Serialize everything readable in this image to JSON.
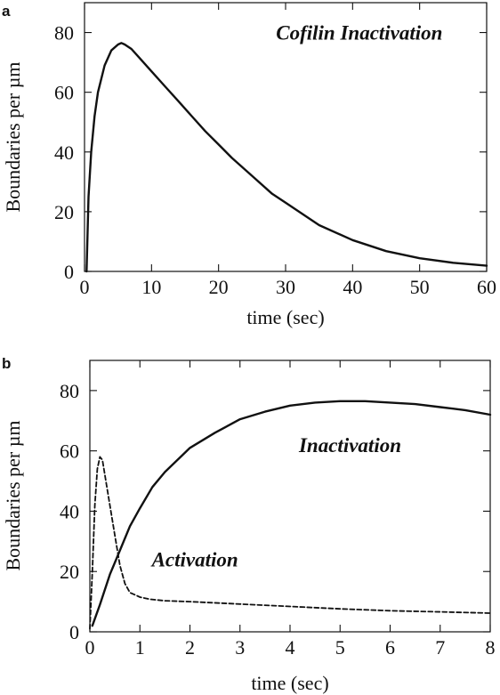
{
  "chart_data": [
    {
      "panel_label": "a",
      "type": "line",
      "title": "",
      "xlabel": "time (sec)",
      "ylabel": "Boundaries per µm",
      "xlim": [
        0,
        60
      ],
      "ylim": [
        0,
        90
      ],
      "xticks": [
        0,
        10,
        20,
        30,
        40,
        50,
        60
      ],
      "yticks": [
        0,
        20,
        40,
        60,
        80
      ],
      "grid": false,
      "annotations": [
        {
          "text": "Cofilin Inactivation",
          "x": 41,
          "y": 80
        }
      ],
      "series": [
        {
          "style": "solid",
          "x": [
            0.3,
            0.6,
            1,
            1.5,
            2,
            3,
            4,
            5,
            5.5,
            6,
            7,
            8,
            10,
            12,
            14,
            16,
            18,
            20,
            22,
            25,
            28,
            30,
            35,
            40,
            45,
            50,
            55,
            60
          ],
          "y": [
            0,
            25,
            40,
            52,
            60,
            69,
            74,
            76,
            76.5,
            76,
            74.5,
            72,
            67,
            62,
            57,
            52,
            47,
            42.5,
            38,
            32,
            26,
            23,
            15.5,
            10.5,
            6.8,
            4.4,
            2.9,
            1.9
          ]
        }
      ]
    },
    {
      "panel_label": "b",
      "type": "line",
      "title": "",
      "xlabel": "time (sec)",
      "ylabel": "Boundaries per µm",
      "xlim": [
        0,
        8
      ],
      "ylim": [
        0,
        90
      ],
      "xticks": [
        0,
        1,
        2,
        3,
        4,
        5,
        6,
        7,
        8
      ],
      "yticks": [
        0,
        20,
        40,
        60,
        80
      ],
      "grid": false,
      "annotations": [
        {
          "text": "Inactivation",
          "x": 5.2,
          "y": 62
        },
        {
          "text": "Activation",
          "x": 2.1,
          "y": 24
        }
      ],
      "series": [
        {
          "style": "solid",
          "x": [
            0.05,
            0.2,
            0.4,
            0.6,
            0.8,
            1,
            1.25,
            1.5,
            2,
            2.5,
            3,
            3.5,
            4,
            4.5,
            5,
            5.5,
            6,
            6.5,
            7,
            7.5,
            8
          ],
          "y": [
            2,
            9,
            19,
            27,
            35,
            41,
            48,
            53,
            61,
            66,
            70.5,
            73,
            75,
            76,
            76.5,
            76.5,
            76,
            75.5,
            74.5,
            73.5,
            72
          ]
        },
        {
          "style": "dashed",
          "x": [
            0,
            0.05,
            0.1,
            0.15,
            0.2,
            0.25,
            0.3,
            0.4,
            0.5,
            0.6,
            0.7,
            0.8,
            1,
            1.2,
            1.5,
            2,
            3,
            4,
            5,
            6,
            7,
            8
          ],
          "y": [
            1,
            20,
            42,
            54,
            58,
            57,
            52,
            42,
            32,
            22,
            16,
            13,
            11.5,
            10.8,
            10.3,
            10,
            9.2,
            8.4,
            7.6,
            7,
            6.6,
            6.2
          ]
        }
      ]
    }
  ]
}
